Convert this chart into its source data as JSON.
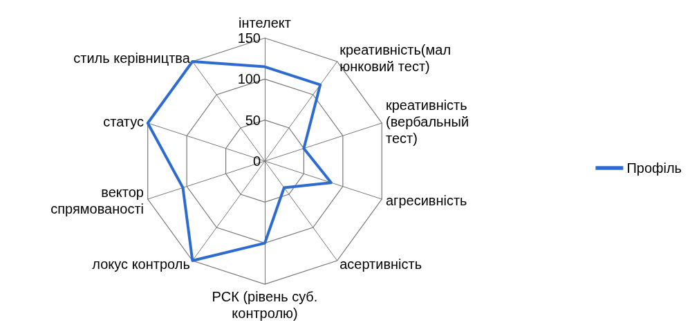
{
  "chart_data": {
    "type": "radar",
    "categories": [
      "інтелект",
      "креативність(мал\nюнковий тест)",
      "креативність\n(вербальный\nтест)",
      "агресивність",
      "асертивність",
      "РСК (рівень суб.\nконтролю)",
      "локус контроль",
      "вектор\nспрямованості",
      "статус",
      "стиль керівництва"
    ],
    "series": [
      {
        "name": "Профіль",
        "color": "#2e6bd0",
        "values": [
          115,
          115,
          50,
          85,
          40,
          100,
          150,
          105,
          150,
          150
        ]
      }
    ],
    "ylim": [
      0,
      150
    ],
    "yticks": [
      0,
      50,
      100,
      150
    ],
    "grid": true,
    "legend": "right",
    "marker": "none",
    "line_style": "solid"
  }
}
